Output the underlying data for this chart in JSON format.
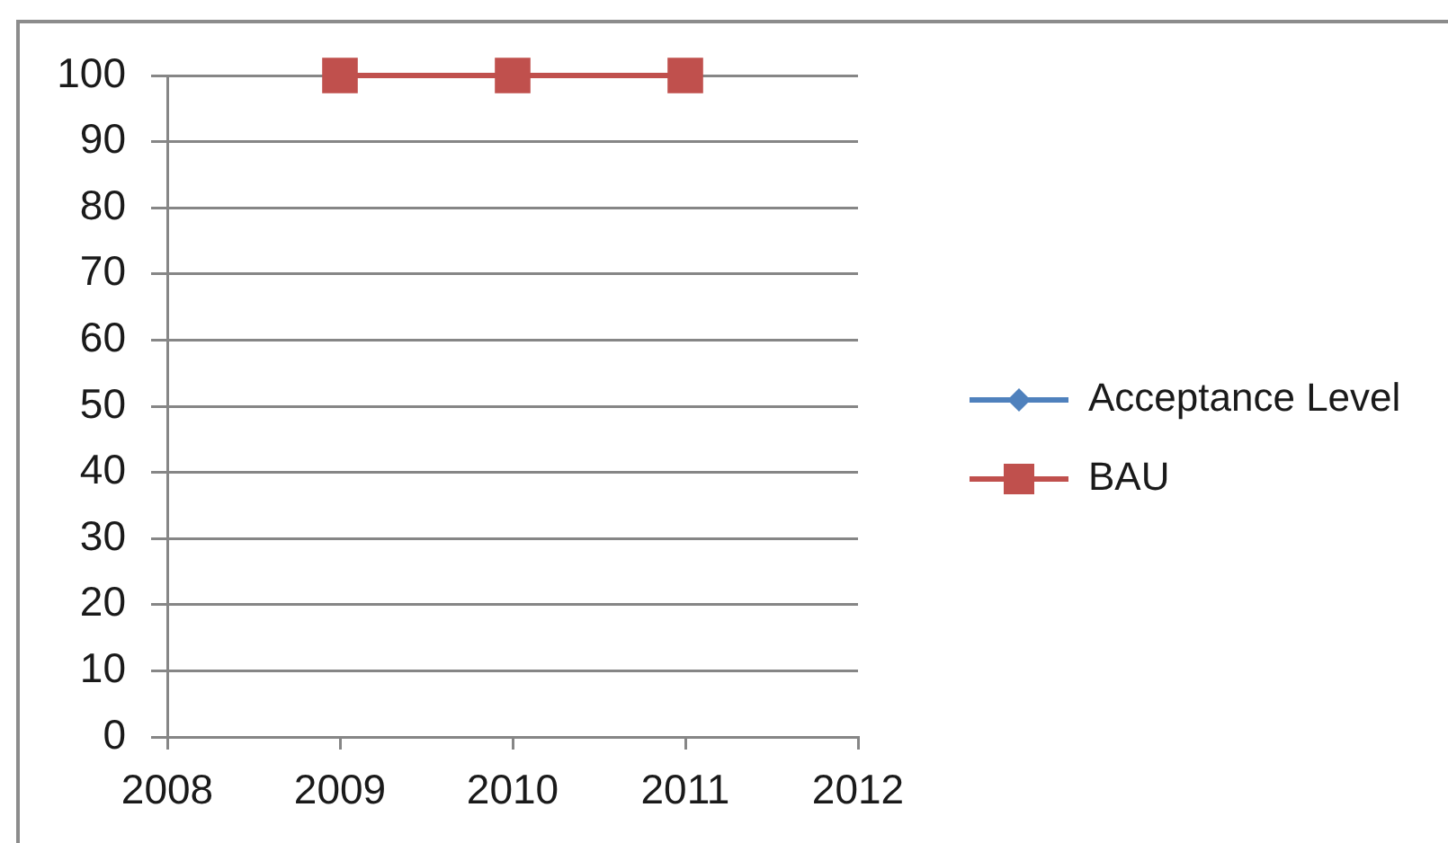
{
  "chart_data": {
    "type": "line",
    "x": [
      2009,
      2010,
      2011
    ],
    "series": [
      {
        "name": "Acceptance Level",
        "color": "#4f81bd",
        "marker": "diamond",
        "values": [
          null,
          null,
          null
        ]
      },
      {
        "name": "BAU",
        "color": "#c0504d",
        "marker": "square",
        "values": [
          100,
          100,
          100
        ]
      }
    ],
    "xlim": [
      2008,
      2012
    ],
    "xticks": [
      2008,
      2009,
      2010,
      2011,
      2012
    ],
    "ylim": [
      0,
      100
    ],
    "yticks": [
      0,
      10,
      20,
      30,
      40,
      50,
      60,
      70,
      80,
      90,
      100
    ],
    "grid": "y",
    "legend": "right"
  }
}
